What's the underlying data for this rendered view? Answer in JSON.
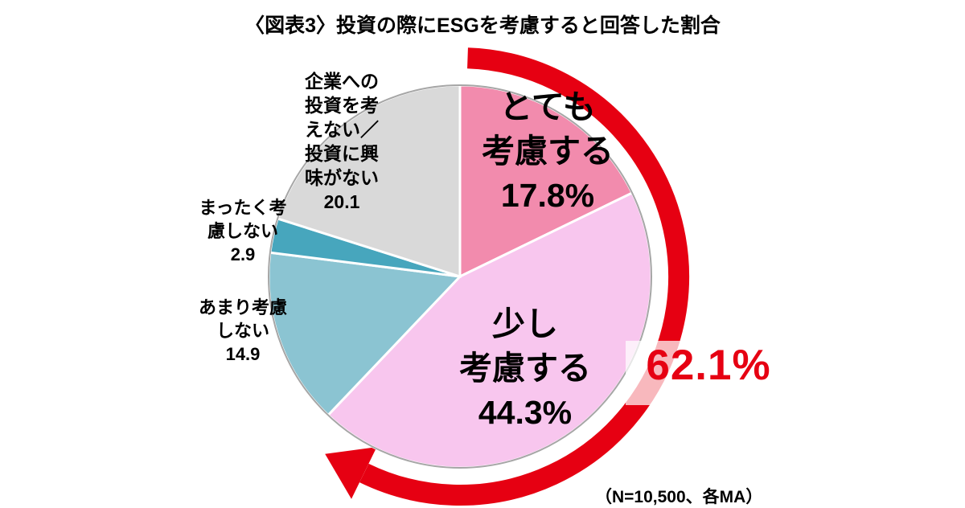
{
  "title": "〈図表3〉投資の際にESGを考慮すると回答した割合",
  "chart_data": {
    "type": "pie",
    "title": "〈図表3〉投資の際にESGを考慮すると回答した割合",
    "unit": "%",
    "start_angle": "top",
    "direction": "clockwise",
    "segments": [
      {
        "label": "とても考慮する",
        "value": 17.8,
        "color": "#F28BAD",
        "label_lines": [
          "とても",
          "考慮する",
          "17.8%"
        ],
        "label_placement": "inside"
      },
      {
        "label": "少し考慮する",
        "value": 44.3,
        "color": "#F8C6EE",
        "label_lines": [
          "少し",
          "考慮する",
          "44.3%"
        ],
        "label_placement": "inside"
      },
      {
        "label": "あまり考慮しない",
        "value": 14.9,
        "color": "#8BC4D2",
        "label_lines": [
          "あまり考慮",
          "しない",
          "14.9"
        ],
        "label_placement": "outside-left"
      },
      {
        "label": "まったく考慮しない",
        "value": 2.9,
        "color": "#47A6BD",
        "label_lines": [
          "まったく考",
          "慮しない",
          "2.9"
        ],
        "label_placement": "outside-left"
      },
      {
        "label": "企業への投資を考えない／投資に興味がない",
        "value": 20.1,
        "color": "#D9D9D9",
        "label_lines": [
          "企業への",
          "投資を考",
          "えない／",
          "投資に興",
          "味がない",
          "20.1"
        ],
        "label_placement": "outside-upper-left"
      }
    ],
    "highlight": {
      "text": "62.1%",
      "value": 62.1,
      "color": "#E60012",
      "arc_color": "#E60012"
    },
    "footnote": "（N=10,500、各MA）",
    "legend": "none",
    "outline_color": "#A6A6A6"
  },
  "colors": {
    "background": "#FFFFFF",
    "text": "#000000",
    "accent_red": "#E60012",
    "pie_outline": "#A6A6A6"
  }
}
